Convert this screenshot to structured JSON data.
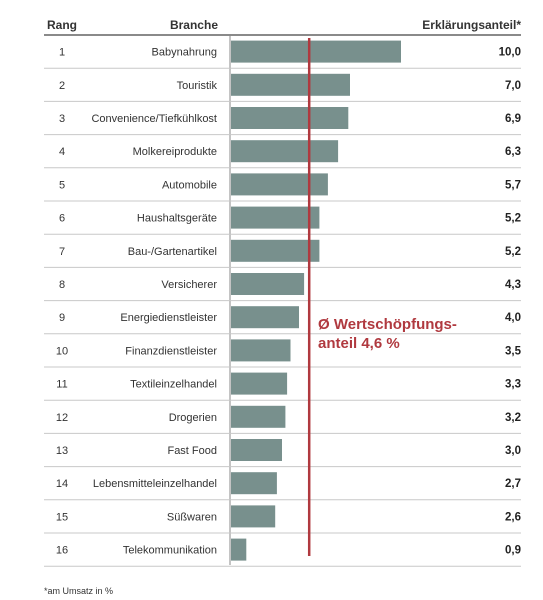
{
  "header": {
    "rank_label": "Rang",
    "category_label": "Branche",
    "value_label": "Erklärungsanteil*"
  },
  "annotation": {
    "line1": "Ø Wertschöpfungs-",
    "line2": "anteil 4,6 %"
  },
  "footnote": "*am Umsatz in %",
  "colors": {
    "bar": "#78908d",
    "average_line": "#b0393f",
    "row_divider": "#c8c8c8",
    "header_rule": "#444444"
  },
  "chart_data": {
    "type": "bar",
    "orientation": "horizontal",
    "ranks": [
      "1",
      "2",
      "3",
      "4",
      "5",
      "6",
      "7",
      "8",
      "9",
      "10",
      "11",
      "12",
      "13",
      "14",
      "15",
      "16"
    ],
    "categories": [
      "Babynahrung",
      "Touristik",
      "Convenience/Tiefkühlkost",
      "Molkereiprodukte",
      "Automobile",
      "Haushaltsgeräte",
      "Bau-/Gartenartikel",
      "Versicherer",
      "Energiedienstleister",
      "Finanzdienstleister",
      "Textileinzelhandel",
      "Drogerien",
      "Fast Food",
      "Lebensmitteleinzelhandel",
      "Süßwaren",
      "Telekommunikation"
    ],
    "values": [
      10.0,
      7.0,
      6.9,
      6.3,
      5.7,
      5.2,
      5.2,
      4.3,
      4.0,
      3.5,
      3.3,
      3.2,
      3.0,
      2.7,
      2.6,
      0.9
    ],
    "value_labels": [
      "10,0",
      "7,0",
      "6,9",
      "6,3",
      "5,7",
      "5,2",
      "5,2",
      "4,3",
      "4,0",
      "3,5",
      "3,3",
      "3,2",
      "3,0",
      "2,7",
      "2,6",
      "0,9"
    ],
    "average": 4.6,
    "xlim": [
      0,
      10
    ]
  }
}
